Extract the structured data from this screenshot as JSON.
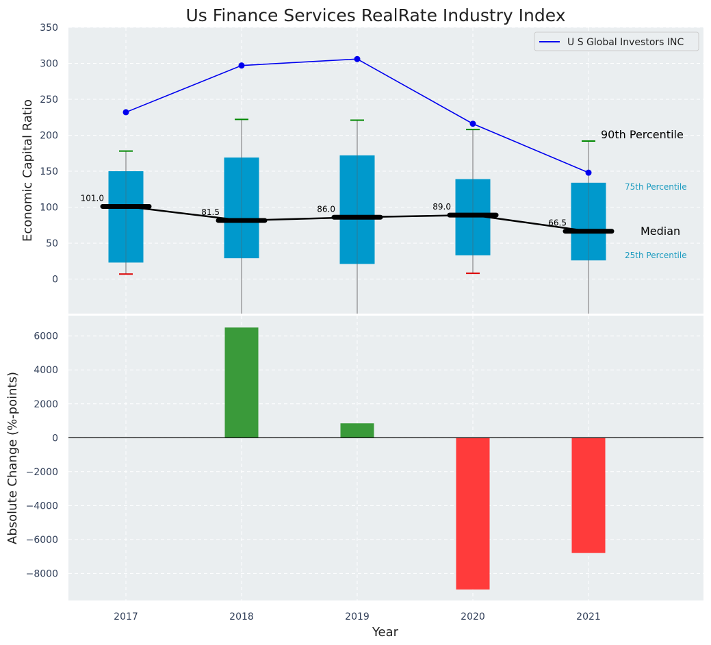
{
  "title": "Us Finance Services RealRate Industry Index",
  "colors": {
    "background": "#eaeef0",
    "grid": "#ffffff",
    "box": "#0099cc",
    "median_line": "#000000",
    "company_line": "#0000ee",
    "whisker": "#888888",
    "p90_cap": "#008800",
    "p10_cap": "#dd0000",
    "positive_bar": "#3a9a3a",
    "negative_bar": "#ff3b3b",
    "label_75_25": "#1b9bbf",
    "tick_text": "#2f3d57"
  },
  "chart_data": [
    {
      "type": "box",
      "ylabel": "Economic Capital Ratio",
      "ylim": [
        -48,
        350
      ],
      "yticks": [
        0,
        50,
        100,
        150,
        200,
        250,
        300,
        350
      ],
      "categories": [
        "2017",
        "2018",
        "2019",
        "2020",
        "2021"
      ],
      "p10": [
        7,
        -60,
        -60,
        8,
        -60
      ],
      "p25": [
        23,
        29,
        21,
        33,
        26
      ],
      "median": [
        101.0,
        81.5,
        86.0,
        89.0,
        66.5
      ],
      "median_labels": [
        "101.0",
        "81.5",
        "86.0",
        "89.0",
        "66.5"
      ],
      "p75": [
        150,
        169,
        172,
        139,
        134
      ],
      "p90": [
        178,
        222,
        221,
        208,
        192
      ],
      "company_series": {
        "name": "U S Global Investors INC",
        "values": [
          232,
          297,
          306,
          216,
          148
        ]
      },
      "legend": [
        "U S Global Investors INC"
      ],
      "legend_position": "top-right",
      "annotations": {
        "p90": "90th Percentile",
        "p75": "75th Percentile",
        "median": "Median",
        "p25": "25th Percentile"
      }
    },
    {
      "type": "bar",
      "xlabel": "Year",
      "ylabel": "Absolute Change (%-points)",
      "ylim": [
        -9600,
        7200
      ],
      "yticks": [
        -8000,
        -6000,
        -4000,
        -2000,
        0,
        2000,
        4000,
        6000
      ],
      "categories": [
        "2017",
        "2018",
        "2019",
        "2020",
        "2021"
      ],
      "values": [
        null,
        6500,
        850,
        -8950,
        -6800
      ]
    }
  ]
}
